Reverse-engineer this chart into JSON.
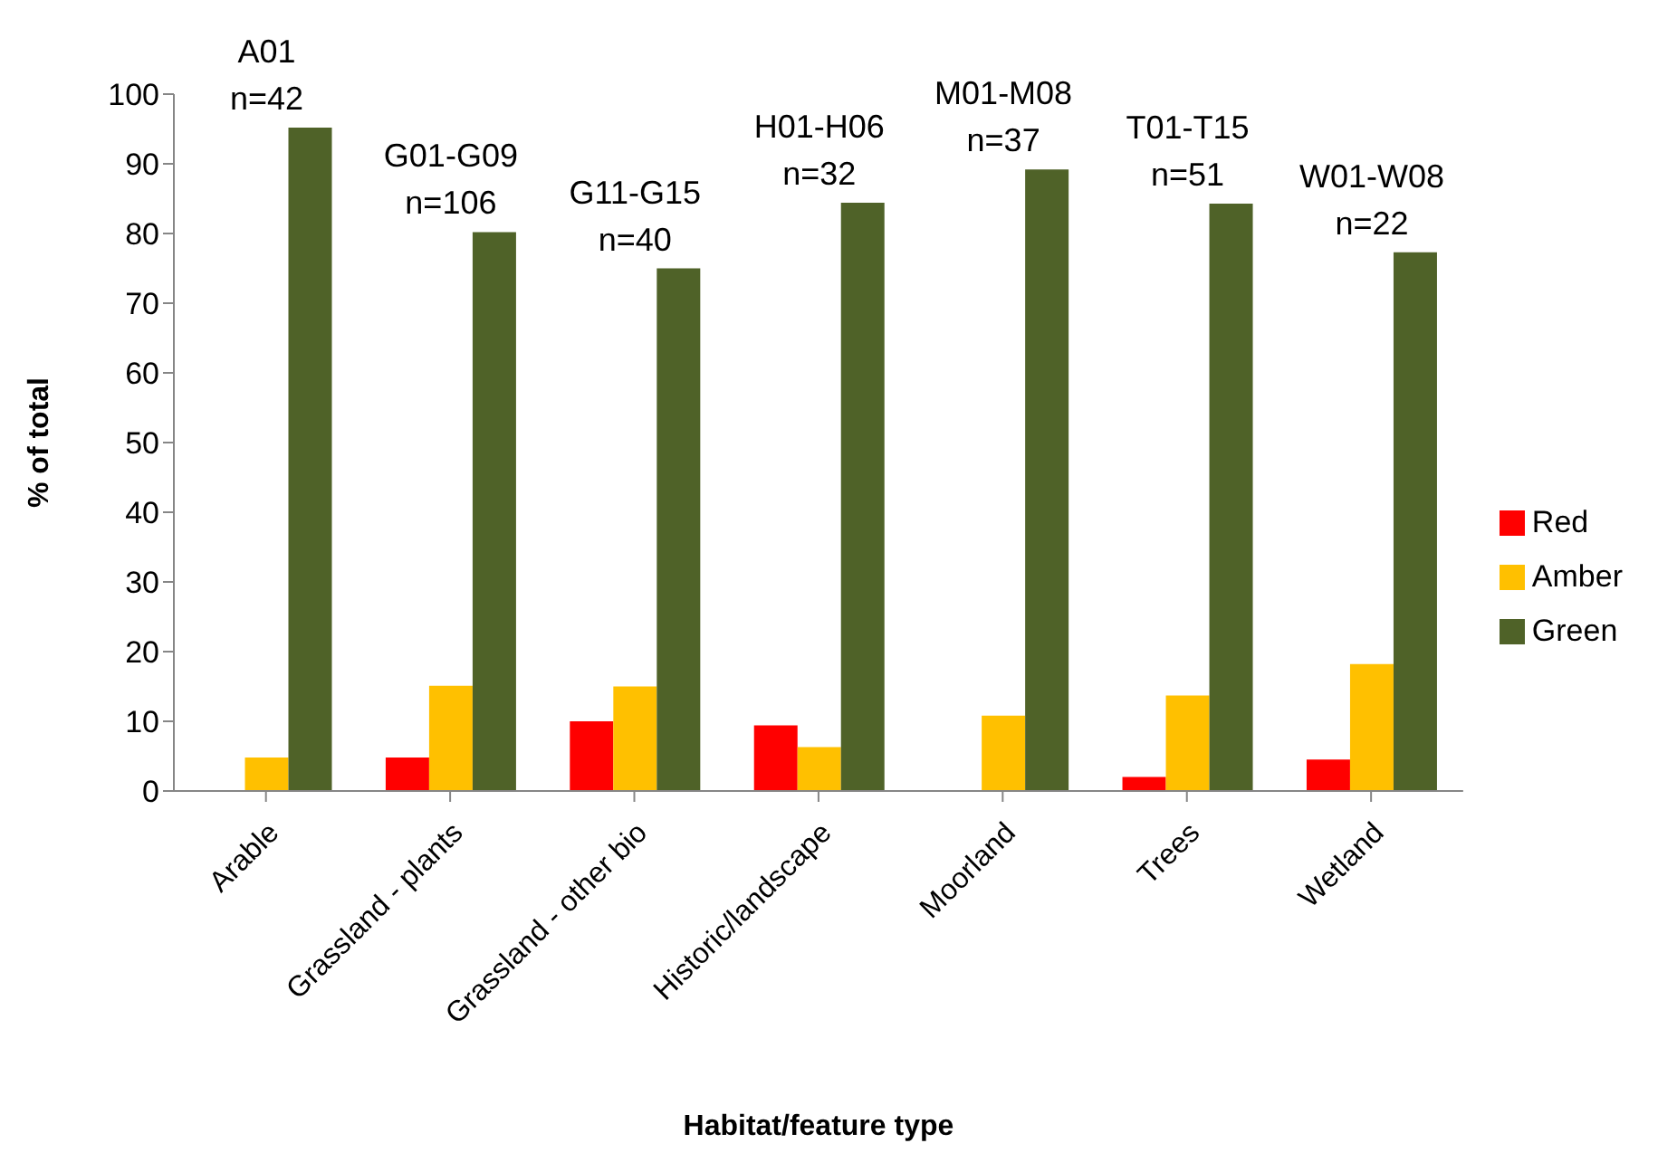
{
  "chart_data": {
    "type": "bar",
    "xlabel": "Habitat/feature type",
    "ylabel": "% of total",
    "categories": [
      "Arable",
      "Grassland - plants",
      "Grassland - other bio",
      "Historic/landscape",
      "Moorland",
      "Trees",
      "Wetland"
    ],
    "series": [
      {
        "name": "Red",
        "color": "#ff0000",
        "values": [
          0,
          4.8,
          10,
          9.4,
          0,
          2,
          4.5
        ]
      },
      {
        "name": "Amber",
        "color": "#ffc000",
        "values": [
          4.8,
          15.1,
          15,
          6.3,
          10.8,
          13.7,
          18.2
        ]
      },
      {
        "name": "Green",
        "color": "#4f6228",
        "values": [
          95.2,
          80.2,
          75,
          84.4,
          89.2,
          84.3,
          77.3
        ]
      }
    ],
    "ylim": [
      0,
      100
    ],
    "yticks": [
      0,
      10,
      20,
      30,
      40,
      50,
      60,
      70,
      80,
      90,
      100
    ],
    "grid": false,
    "legend": "right",
    "annotations": [
      "A01\nn=42",
      "G01-G09\nn=106",
      "G11-G15\nn=40",
      "H01-H06\nn=32",
      "M01-M08\nn=37",
      "T01-T15\nn=51",
      "W01-W08\nn=22"
    ]
  }
}
